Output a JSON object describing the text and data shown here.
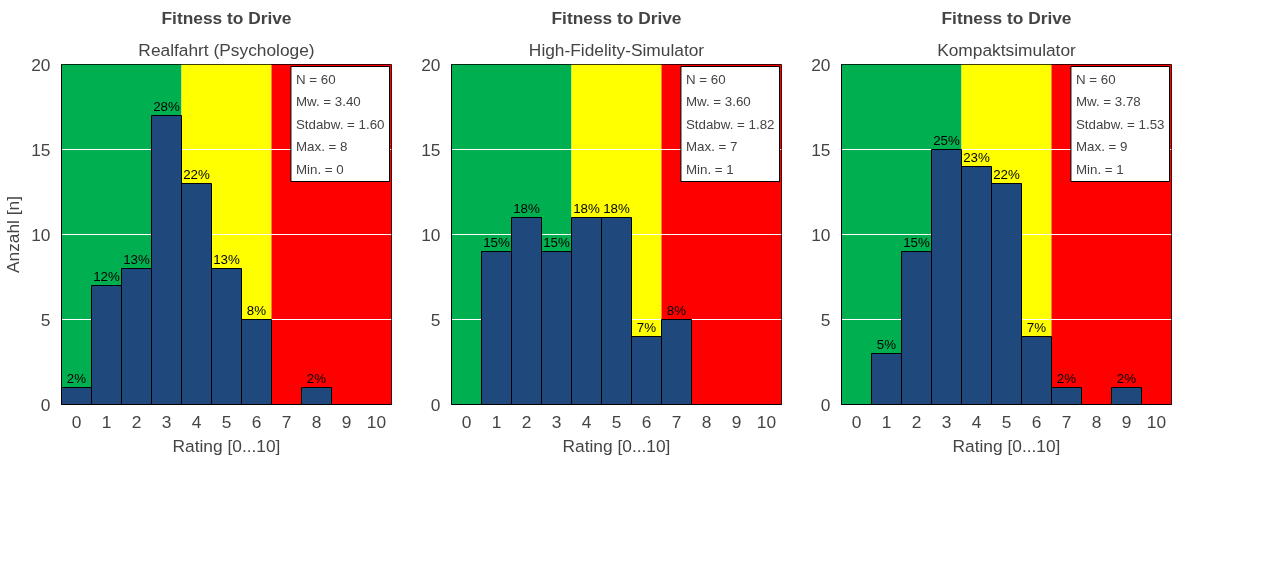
{
  "chart_data": [
    {
      "type": "histogram",
      "title": "Fitness to Drive",
      "subtitle": "Realfahrt (Psychologe)",
      "xlabel": "Rating [0...10]",
      "ylabel": "Anzahl [n]",
      "bins": [
        -0.5,
        0.5,
        1.5,
        2.5,
        3.5,
        4.5,
        5.5,
        6.5,
        7.5,
        8.5,
        9.5,
        10.5
      ],
      "values": [
        1,
        7,
        8,
        17,
        13,
        8,
        5,
        0,
        1,
        0,
        0
      ],
      "color": "#1f497d",
      "xlim": [
        -0.5,
        10.5
      ],
      "ylim": [
        0,
        20
      ],
      "xticks": [
        0,
        1,
        2,
        3,
        4,
        5,
        6,
        7,
        8,
        9,
        10
      ],
      "yticks": [
        0,
        5,
        10,
        15,
        20
      ],
      "grid": "y",
      "bands": [
        {
          "axis": "x",
          "from": -0.5,
          "to": 3.5,
          "color": "#00b050"
        },
        {
          "axis": "x",
          "from": 3.5,
          "to": 6.5,
          "color": "#ffff00"
        },
        {
          "axis": "x",
          "from": 6.5,
          "to": 10.5,
          "color": "#ff0000"
        }
      ],
      "annotations": [
        "N = 60",
        "Mw. = 3.40",
        "Stdabw. = 1.60",
        "Max. = 8",
        "Min. = 0",
        {
          "text": "2%",
          "x": 0,
          "y": 1
        },
        {
          "text": "12%",
          "x": 1,
          "y": 7
        },
        {
          "text": "13%",
          "x": 2,
          "y": 8
        },
        {
          "text": "28%",
          "x": 3,
          "y": 17
        },
        {
          "text": "22%",
          "x": 4,
          "y": 13
        },
        {
          "text": "13%",
          "x": 5,
          "y": 8
        },
        {
          "text": "8%",
          "x": 6,
          "y": 5
        },
        {
          "text": "2%",
          "x": 8,
          "y": 1
        }
      ]
    },
    {
      "type": "histogram",
      "title": "Fitness to Drive",
      "subtitle": "High-Fidelity-Simulator",
      "xlabel": "Rating [0...10]",
      "bins": [
        -0.5,
        0.5,
        1.5,
        2.5,
        3.5,
        4.5,
        5.5,
        6.5,
        7.5,
        8.5,
        9.5,
        10.5
      ],
      "values": [
        0,
        9,
        11,
        9,
        11,
        11,
        4,
        5,
        0,
        0,
        0
      ],
      "color": "#1f497d",
      "xlim": [
        -0.5,
        10.5
      ],
      "ylim": [
        0,
        20
      ],
      "xticks": [
        0,
        1,
        2,
        3,
        4,
        5,
        6,
        7,
        8,
        9,
        10
      ],
      "yticks": [
        0,
        5,
        10,
        15,
        20
      ],
      "grid": "y",
      "bands": [
        {
          "axis": "x",
          "from": -0.5,
          "to": 3.5,
          "color": "#00b050"
        },
        {
          "axis": "x",
          "from": 3.5,
          "to": 6.5,
          "color": "#ffff00"
        },
        {
          "axis": "x",
          "from": 6.5,
          "to": 10.5,
          "color": "#ff0000"
        }
      ],
      "annotations": [
        "N = 60",
        "Mw. = 3.60",
        "Stdabw. = 1.82",
        "Max. = 7",
        "Min. = 1",
        {
          "text": "15%",
          "x": 1,
          "y": 9
        },
        {
          "text": "18%",
          "x": 2,
          "y": 11
        },
        {
          "text": "15%",
          "x": 3,
          "y": 9
        },
        {
          "text": "18%",
          "x": 4,
          "y": 11
        },
        {
          "text": "18%",
          "x": 5,
          "y": 11
        },
        {
          "text": "7%",
          "x": 6,
          "y": 4
        },
        {
          "text": "8%",
          "x": 7,
          "y": 5
        }
      ]
    },
    {
      "type": "histogram",
      "title": "Fitness to Drive",
      "subtitle": "Kompaktsimulator",
      "xlabel": "Rating [0...10]",
      "bins": [
        -0.5,
        0.5,
        1.5,
        2.5,
        3.5,
        4.5,
        5.5,
        6.5,
        7.5,
        8.5,
        9.5,
        10.5
      ],
      "values": [
        0,
        3,
        9,
        15,
        14,
        13,
        4,
        1,
        0,
        1,
        0
      ],
      "color": "#1f497d",
      "xlim": [
        -0.5,
        10.5
      ],
      "ylim": [
        0,
        20
      ],
      "xticks": [
        0,
        1,
        2,
        3,
        4,
        5,
        6,
        7,
        8,
        9,
        10
      ],
      "yticks": [
        0,
        5,
        10,
        15,
        20
      ],
      "grid": "y",
      "bands": [
        {
          "axis": "x",
          "from": -0.5,
          "to": 3.5,
          "color": "#00b050"
        },
        {
          "axis": "x",
          "from": 3.5,
          "to": 6.5,
          "color": "#ffff00"
        },
        {
          "axis": "x",
          "from": 6.5,
          "to": 10.5,
          "color": "#ff0000"
        }
      ],
      "annotations": [
        "N = 60",
        "Mw. = 3.78",
        "Stdabw. = 1.53",
        "Max. = 9",
        "Min. = 1",
        {
          "text": "5%",
          "x": 1,
          "y": 3
        },
        {
          "text": "15%",
          "x": 2,
          "y": 9
        },
        {
          "text": "25%",
          "x": 3,
          "y": 15
        },
        {
          "text": "23%",
          "x": 4,
          "y": 14
        },
        {
          "text": "22%",
          "x": 5,
          "y": 13
        },
        {
          "text": "7%",
          "x": 6,
          "y": 4
        },
        {
          "text": "2%",
          "x": 7,
          "y": 1
        },
        {
          "text": "2%",
          "x": 9,
          "y": 1
        }
      ]
    }
  ]
}
